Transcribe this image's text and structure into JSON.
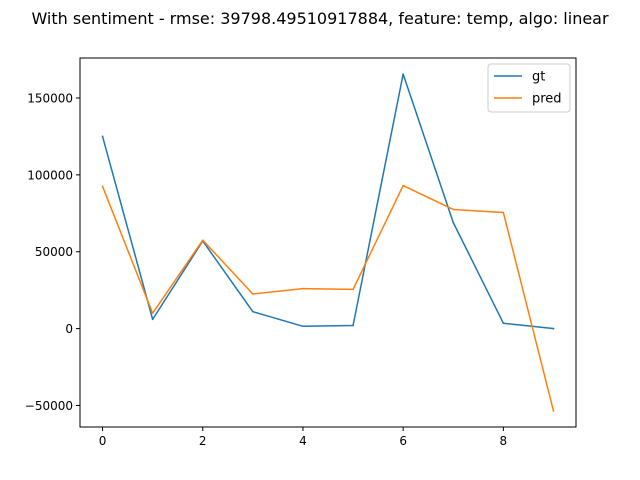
{
  "chart_data": {
    "type": "line",
    "title": "With sentiment - rmse: 39798.49510917884, feature: temp, algo: linear",
    "xlabel": "",
    "ylabel": "",
    "x": [
      0,
      1,
      2,
      3,
      4,
      5,
      6,
      7,
      8,
      9
    ],
    "xlim": [
      -0.45,
      9.45
    ],
    "ylim": [
      -64000,
      176000
    ],
    "xticks": [
      0,
      2,
      4,
      6,
      8
    ],
    "xtick_labels": [
      "0",
      "2",
      "4",
      "6",
      "8"
    ],
    "yticks": [
      -50000,
      0,
      50000,
      100000,
      150000
    ],
    "ytick_labels": [
      "−50000",
      "0",
      "50000",
      "100000",
      "150000"
    ],
    "grid": false,
    "legend_position": "top-right",
    "series": [
      {
        "name": "gt",
        "color": "#1f77b4",
        "values": [
          125000,
          6000,
          57000,
          11000,
          1500,
          2000,
          165500,
          69000,
          3500,
          0
        ]
      },
      {
        "name": "pred",
        "color": "#ff7f0e",
        "values": [
          92500,
          10000,
          57500,
          22500,
          26000,
          25500,
          93000,
          77500,
          75500,
          -53500
        ]
      }
    ]
  }
}
